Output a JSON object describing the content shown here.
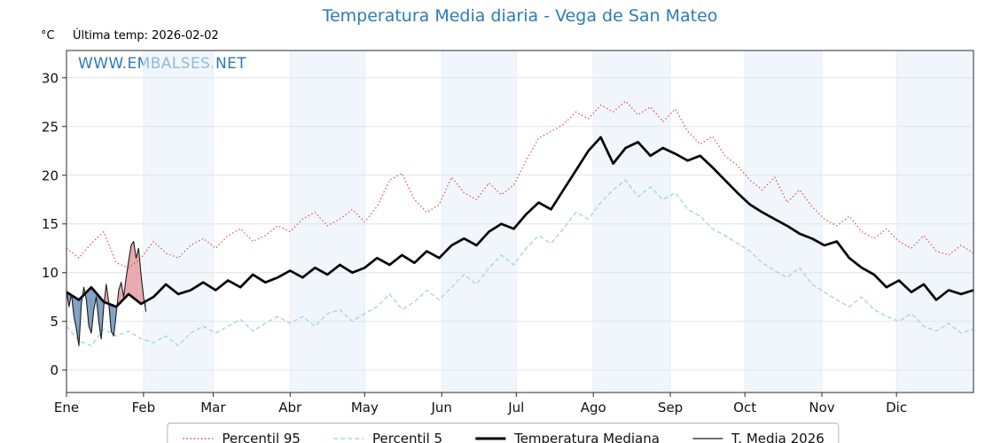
{
  "watermark": "WWW.EMBALSES.NET",
  "header": {
    "last_temp": "Última temp: 2026-02-02"
  },
  "chart_data": {
    "type": "line",
    "title": "Temperatura Media diaria - Vega de San Mateo",
    "ylabel": "°C",
    "xlabel": "",
    "ylim": [
      -2.3,
      32.8
    ],
    "xlim_days": [
      0,
      365
    ],
    "yticks": [
      0,
      5,
      10,
      15,
      20,
      25,
      30
    ],
    "xticks": {
      "labels": [
        "Ene",
        "Feb",
        "Mar",
        "Abr",
        "May",
        "Jun",
        "Jul",
        "Ago",
        "Sep",
        "Oct",
        "Nov",
        "Dic"
      ],
      "day_positions": [
        0,
        31,
        59,
        90,
        120,
        151,
        181,
        212,
        243,
        273,
        304,
        334
      ]
    },
    "grid": true,
    "band_color": "rgba(228,239,247,0.55)",
    "grid_color": "#dfe4e8",
    "accent_color": "#2d7bb6",
    "legend_position": "bottom-center",
    "legend": [
      {
        "label": "Percentil 95",
        "color": "#e04b4b",
        "dash": "1.5,2.6"
      },
      {
        "label": "Percentil 5",
        "color": "#a6d5e8",
        "dash": "5,3"
      },
      {
        "label": "Temperatura Mediana",
        "color": "#000000",
        "dash": null
      },
      {
        "label": "T. Media 2026",
        "color": "#1a1a1a",
        "dash": null
      }
    ],
    "series": [
      {
        "name": "Percentil 95",
        "color": "#e04b4b",
        "dash": "1.5,2.6",
        "width": 1.2,
        "x_start": 0,
        "x_step": 5,
        "values": [
          12.5,
          11.5,
          13.0,
          14.2,
          11.0,
          10.5,
          11.5,
          13.2,
          12.0,
          11.5,
          12.8,
          13.5,
          12.5,
          13.8,
          14.5,
          13.2,
          13.8,
          14.8,
          14.2,
          15.5,
          16.2,
          14.8,
          15.5,
          16.5,
          15.2,
          16.8,
          19.5,
          20.2,
          17.5,
          16.2,
          17.0,
          19.8,
          18.2,
          17.5,
          19.2,
          18.0,
          19.0,
          21.5,
          23.8,
          24.5,
          25.2,
          26.5,
          25.8,
          27.2,
          26.5,
          27.6,
          26.2,
          27.0,
          25.5,
          26.8,
          24.5,
          23.2,
          24.0,
          22.0,
          21.0,
          19.5,
          18.5,
          19.8,
          17.2,
          18.5,
          16.8,
          15.5,
          14.8,
          15.8,
          14.2,
          13.5,
          14.5,
          13.2,
          12.5,
          13.8,
          12.2,
          11.8,
          12.8,
          12.0
        ]
      },
      {
        "name": "Percentil 5",
        "color": "#a6d5e8",
        "dash": "5,3",
        "width": 1.4,
        "x_start": 0,
        "x_step": 5,
        "values": [
          4.5,
          3.0,
          2.5,
          4.2,
          3.5,
          4.0,
          3.2,
          2.8,
          3.5,
          2.5,
          3.8,
          4.5,
          3.8,
          4.5,
          5.2,
          4.0,
          4.8,
          5.5,
          4.8,
          5.5,
          4.5,
          5.8,
          6.2,
          5.0,
          5.8,
          6.5,
          7.8,
          6.2,
          7.0,
          8.2,
          7.2,
          8.5,
          9.8,
          8.8,
          10.5,
          11.8,
          10.8,
          12.5,
          13.8,
          13.0,
          14.5,
          16.2,
          15.5,
          17.2,
          18.5,
          19.5,
          17.8,
          18.8,
          17.5,
          18.2,
          16.5,
          15.8,
          14.5,
          13.8,
          13.0,
          12.2,
          11.0,
          10.2,
          9.5,
          10.5,
          8.8,
          8.0,
          7.2,
          6.5,
          7.5,
          6.2,
          5.5,
          5.0,
          5.8,
          4.5,
          4.0,
          4.8,
          3.8,
          4.2
        ]
      },
      {
        "name": "Temperatura Mediana",
        "color": "#000000",
        "dash": null,
        "width": 2.7,
        "x_start": 0,
        "x_step": 5,
        "values": [
          8.0,
          7.2,
          8.5,
          7.0,
          6.5,
          7.8,
          6.8,
          7.5,
          8.8,
          7.8,
          8.2,
          9.0,
          8.2,
          9.2,
          8.5,
          9.8,
          9.0,
          9.5,
          10.2,
          9.5,
          10.5,
          9.8,
          10.8,
          10.0,
          10.5,
          11.5,
          10.8,
          11.8,
          11.0,
          12.2,
          11.5,
          12.8,
          13.5,
          12.8,
          14.2,
          15.0,
          14.5,
          16.0,
          17.2,
          16.5,
          18.5,
          20.5,
          22.5,
          23.9,
          21.2,
          22.8,
          23.4,
          22.0,
          22.8,
          22.2,
          21.5,
          22.0,
          20.8,
          19.5,
          18.2,
          17.0,
          16.2,
          15.5,
          14.8,
          14.0,
          13.5,
          12.8,
          13.2,
          11.5,
          10.5,
          9.8,
          8.5,
          9.2,
          8.0,
          8.8,
          7.2,
          8.2,
          7.8,
          8.2
        ]
      },
      {
        "name": "T. Media 2026",
        "color": "#1a1a1a",
        "dash": null,
        "width": 1.1,
        "x_start": 0,
        "x_step": 1,
        "values": [
          8.2,
          6.5,
          7.8,
          5.5,
          4.2,
          2.5,
          6.8,
          8.5,
          7.2,
          4.5,
          3.8,
          6.2,
          7.5,
          5.0,
          3.2,
          6.5,
          8.8,
          7.0,
          4.0,
          3.5,
          5.8,
          8.2,
          9.0,
          7.5,
          9.5,
          11.2,
          12.8,
          13.2,
          11.5,
          12.5,
          9.8,
          7.5,
          6.0
        ]
      }
    ],
    "fill_between": {
      "series_a": "T. Media 2026",
      "series_b": "Temperatura Mediana",
      "above_color": "rgba(228,154,162,0.85)",
      "below_color": "rgba(96,136,178,0.8)"
    }
  }
}
